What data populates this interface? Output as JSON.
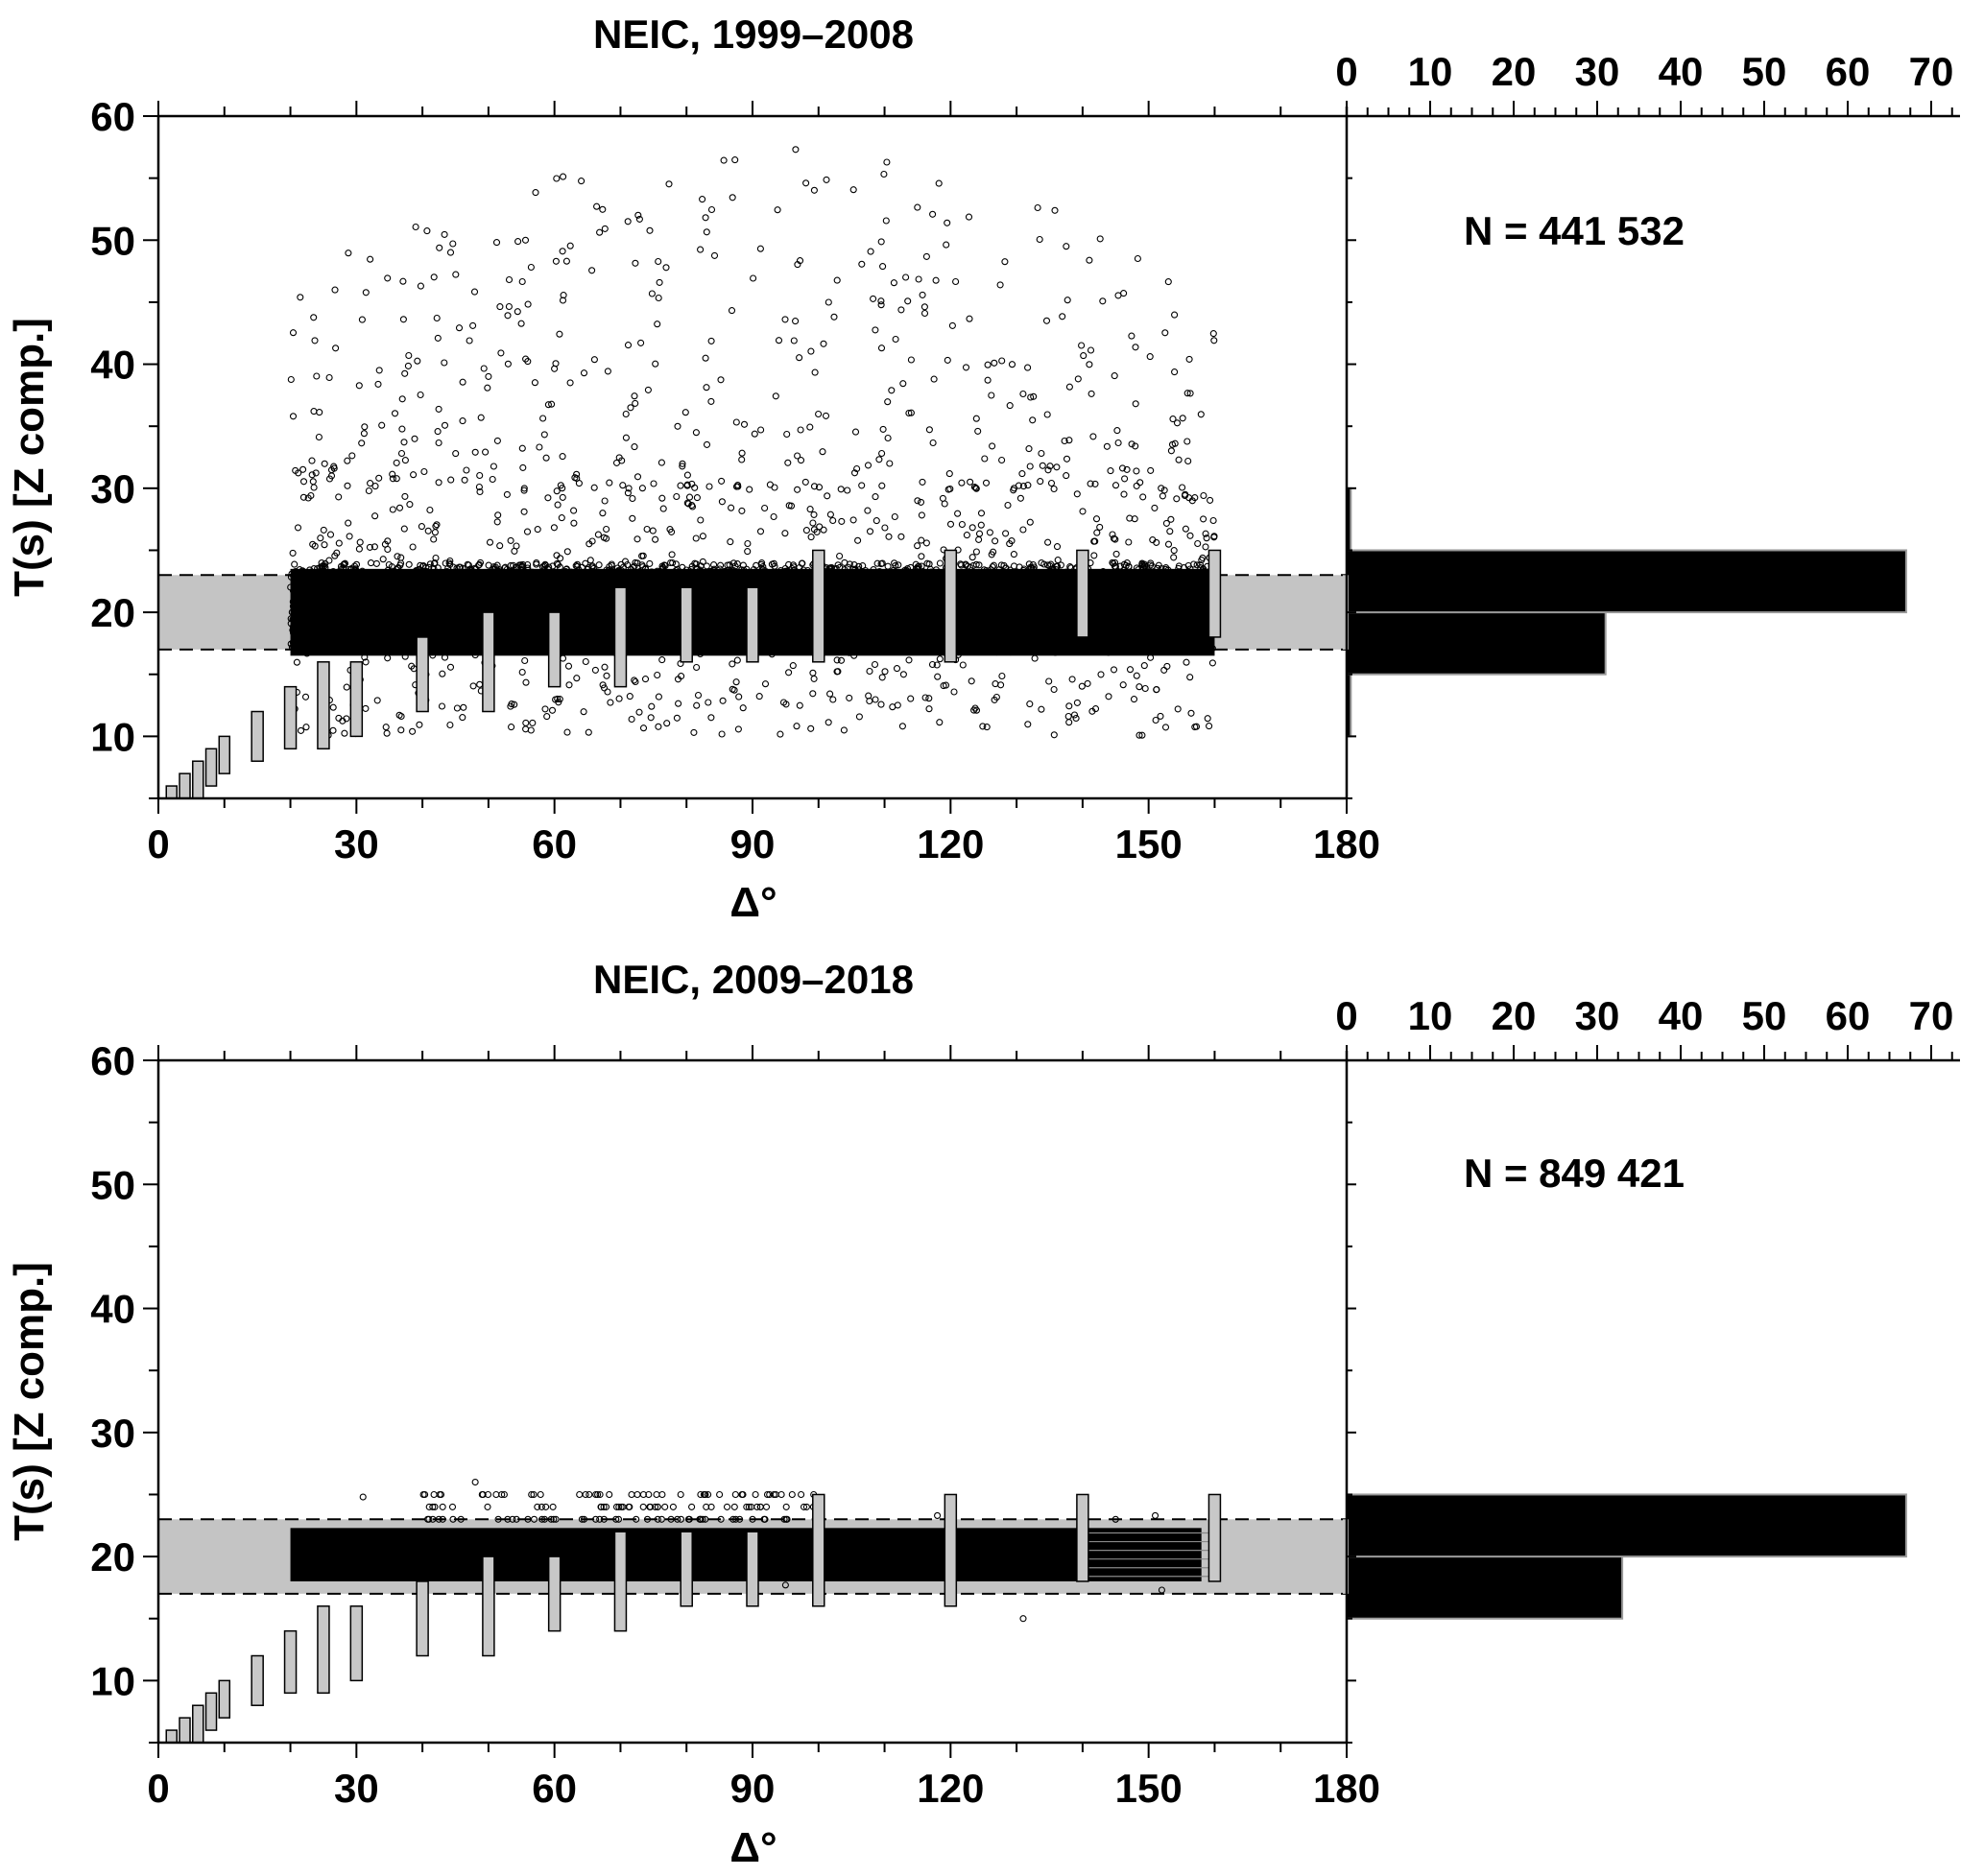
{
  "chart_data": [
    {
      "type": "scatter",
      "title": "NEIC, 1999–2008",
      "xlabel": "Δ°",
      "ylabel": "T(s) [Z comp.]",
      "xlim": [
        0,
        180
      ],
      "ylim": [
        5,
        60
      ],
      "xticks": [
        "0",
        "30",
        "60",
        "90",
        "120",
        "150",
        "180"
      ],
      "yticks": [
        "10",
        "20",
        "30",
        "40",
        "50",
        "60"
      ],
      "count_label": "N = 441 532",
      "reference_band": [
        17,
        23
      ],
      "range_boxes": [
        {
          "x": 2,
          "y": [
            5,
            6
          ]
        },
        {
          "x": 4,
          "y": [
            5,
            7
          ]
        },
        {
          "x": 6,
          "y": [
            5,
            8
          ]
        },
        {
          "x": 8,
          "y": [
            6,
            9
          ]
        },
        {
          "x": 10,
          "y": [
            7,
            10
          ]
        },
        {
          "x": 15,
          "y": [
            8,
            12
          ]
        },
        {
          "x": 20,
          "y": [
            9,
            14
          ]
        },
        {
          "x": 25,
          "y": [
            9,
            16
          ]
        },
        {
          "x": 30,
          "y": [
            10,
            16
          ]
        },
        {
          "x": 40,
          "y": [
            12,
            18
          ]
        },
        {
          "x": 50,
          "y": [
            12,
            20
          ]
        },
        {
          "x": 60,
          "y": [
            14,
            20
          ]
        },
        {
          "x": 70,
          "y": [
            14,
            22
          ]
        },
        {
          "x": 80,
          "y": [
            16,
            22
          ]
        },
        {
          "x": 90,
          "y": [
            16,
            22
          ]
        },
        {
          "x": 100,
          "y": [
            16,
            25
          ]
        },
        {
          "x": 120,
          "y": [
            16,
            25
          ]
        },
        {
          "x": 140,
          "y": [
            18,
            25
          ]
        },
        {
          "x": 160,
          "y": [
            18,
            25
          ]
        }
      ],
      "scatter": {
        "x_range": [
          20,
          160
        ],
        "dense_y": [
          10,
          30
        ],
        "max_y": 58
      },
      "histogram": {
        "xlim": [
          0,
          70
        ],
        "xticks": [
          "0",
          "10",
          "20",
          "30",
          "40",
          "50",
          "60",
          "70"
        ],
        "bins": [
          {
            "y": [
              10,
              15
            ],
            "value": 0.5
          },
          {
            "y": [
              15,
              20
            ],
            "value": 31
          },
          {
            "y": [
              20,
              25
            ],
            "value": 67
          },
          {
            "y": [
              25,
              30
            ],
            "value": 0.5
          }
        ]
      }
    },
    {
      "type": "scatter",
      "title": "NEIC, 2009–2018",
      "xlabel": "Δ°",
      "ylabel": "T(s) [Z comp.]",
      "xlim": [
        0,
        180
      ],
      "ylim": [
        5,
        60
      ],
      "xticks": [
        "0",
        "30",
        "60",
        "90",
        "120",
        "150",
        "180"
      ],
      "yticks": [
        "10",
        "20",
        "30",
        "40",
        "50",
        "60"
      ],
      "count_label": "N = 849 421",
      "reference_band": [
        17,
        23
      ],
      "range_boxes": [
        {
          "x": 2,
          "y": [
            5,
            6
          ]
        },
        {
          "x": 4,
          "y": [
            5,
            7
          ]
        },
        {
          "x": 6,
          "y": [
            5,
            8
          ]
        },
        {
          "x": 8,
          "y": [
            6,
            9
          ]
        },
        {
          "x": 10,
          "y": [
            7,
            10
          ]
        },
        {
          "x": 15,
          "y": [
            8,
            12
          ]
        },
        {
          "x": 20,
          "y": [
            9,
            14
          ]
        },
        {
          "x": 25,
          "y": [
            9,
            16
          ]
        },
        {
          "x": 30,
          "y": [
            10,
            16
          ]
        },
        {
          "x": 40,
          "y": [
            12,
            18
          ]
        },
        {
          "x": 50,
          "y": [
            12,
            20
          ]
        },
        {
          "x": 60,
          "y": [
            14,
            20
          ]
        },
        {
          "x": 70,
          "y": [
            14,
            22
          ]
        },
        {
          "x": 80,
          "y": [
            16,
            22
          ]
        },
        {
          "x": 90,
          "y": [
            16,
            22
          ]
        },
        {
          "x": 100,
          "y": [
            16,
            25
          ]
        },
        {
          "x": 120,
          "y": [
            16,
            25
          ]
        },
        {
          "x": 140,
          "y": [
            18,
            25
          ]
        },
        {
          "x": 160,
          "y": [
            18,
            25
          ]
        }
      ],
      "scatter": {
        "x_range": [
          20,
          160
        ],
        "dense_y": [
          18,
          22
        ],
        "max_y": 26
      },
      "histogram": {
        "xlim": [
          0,
          70
        ],
        "xticks": [
          "0",
          "10",
          "20",
          "30",
          "40",
          "50",
          "60",
          "70"
        ],
        "bins": [
          {
            "y": [
              15,
              20
            ],
            "value": 33
          },
          {
            "y": [
              20,
              25
            ],
            "value": 67
          }
        ]
      }
    }
  ]
}
